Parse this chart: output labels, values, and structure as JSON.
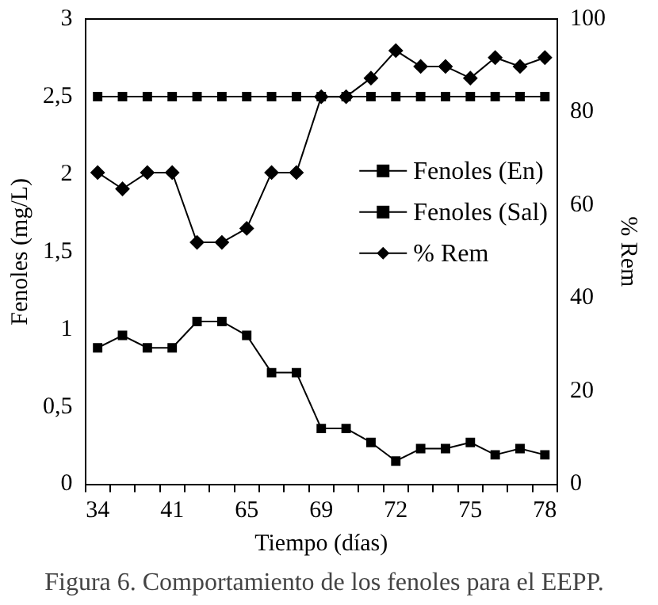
{
  "chart_data": {
    "type": "line",
    "title": "Figura 6. Comportamiento de los fenoles para el EEPP.",
    "xlabel": "Tiempo (días)",
    "ylabel": "Fenoles (mg/L)",
    "y2label": "% Rem",
    "categories": [
      "34",
      null,
      null,
      "41",
      null,
      null,
      "65",
      null,
      null,
      "69",
      null,
      null,
      "72",
      null,
      null,
      "75",
      null,
      null,
      "78"
    ],
    "series": [
      {
        "name": "Fenoles (En)",
        "color": "#000000",
        "marker": "square",
        "values": [
          2.5,
          2.5,
          2.5,
          2.5,
          2.5,
          2.5,
          2.5,
          2.5,
          2.5,
          2.5,
          2.5,
          2.5,
          2.5,
          2.5,
          2.5,
          2.5,
          2.5,
          2.5,
          2.5
        ]
      },
      {
        "name": "Fenoles (Sal)",
        "color": "#000000",
        "marker": "square",
        "values": [
          0.88,
          0.96,
          0.88,
          0.88,
          1.05,
          1.05,
          0.96,
          0.72,
          0.72,
          0.36,
          0.36,
          0.27,
          0.15,
          0.23,
          0.23,
          0.27,
          0.19,
          0.23,
          0.19
        ]
      },
      {
        "name": "% Rem",
        "color": "#000000",
        "marker": "diamond",
        "axis": "y2",
        "values": [
          67,
          63.5,
          67,
          67,
          52,
          52,
          55,
          67,
          67,
          83.3,
          83.3,
          87.3,
          93.2,
          89.8,
          89.8,
          87.3,
          91.7,
          89.8,
          91.7
        ]
      }
    ],
    "ylim": [
      0,
      3
    ],
    "yticks": [
      0,
      {
        "value": 0.5,
        "label": "0,5"
      },
      1,
      {
        "value": 1.5,
        "label": "1,5"
      },
      2,
      {
        "value": 2.5,
        "label": "2,5"
      },
      3
    ],
    "y2lim": [
      0,
      100
    ],
    "y2ticks": [
      0,
      20,
      40,
      60,
      80,
      100
    ],
    "grid": false,
    "legend": "right",
    "line_style": "solid"
  }
}
